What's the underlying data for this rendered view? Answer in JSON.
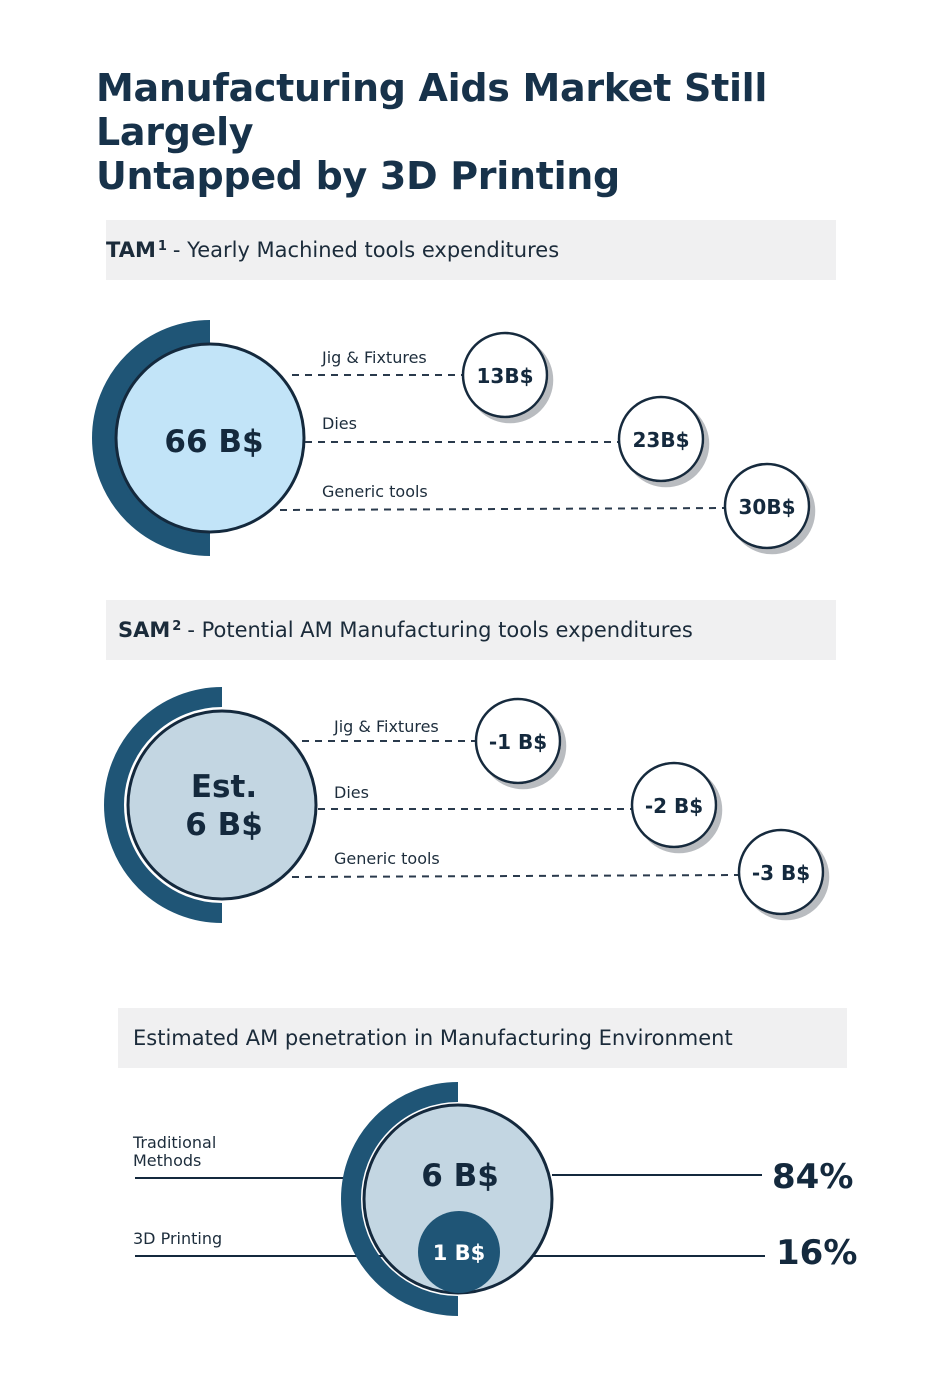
{
  "title_line1": "Manufacturing Aids Market Still Largely",
  "title_line2": "Untapped by 3D Printing",
  "tam": {
    "abbr": "TAM",
    "note": "1",
    "text": "- Yearly Machined tools expenditures",
    "total": "66 B$",
    "items": [
      {
        "label": "Jig & Fixtures",
        "value": "13B$"
      },
      {
        "label": "Dies",
        "value": "23B$"
      },
      {
        "label": "Generic tools",
        "value": "30B$"
      }
    ]
  },
  "sam": {
    "abbr": "SAM",
    "note": "2",
    "text": "- Potential AM Manufacturing tools expenditures",
    "total_line1": "Est.",
    "total_line2": "6 B$",
    "items": [
      {
        "label": "Jig & Fixtures",
        "value": "-1 B$"
      },
      {
        "label": "Dies",
        "value": "-2 B$"
      },
      {
        "label": "Generic tools",
        "value": "-3 B$"
      }
    ]
  },
  "penetration": {
    "title": "Estimated AM penetration in Manufacturing Environment",
    "total": "6 B$",
    "am_value": "1 B$",
    "traditional_label_line1": "Traditional",
    "traditional_label_line2": "Methods",
    "traditional_pct": "84%",
    "am_label": "3D Printing",
    "am_pct": "16%"
  },
  "colors": {
    "dark_navy": "#14293d",
    "arc_blue": "#1f5576",
    "tam_fill": "#c2e4f8",
    "sam_fill": "#c3d6e2",
    "band_bg": "#f0f0f1"
  }
}
